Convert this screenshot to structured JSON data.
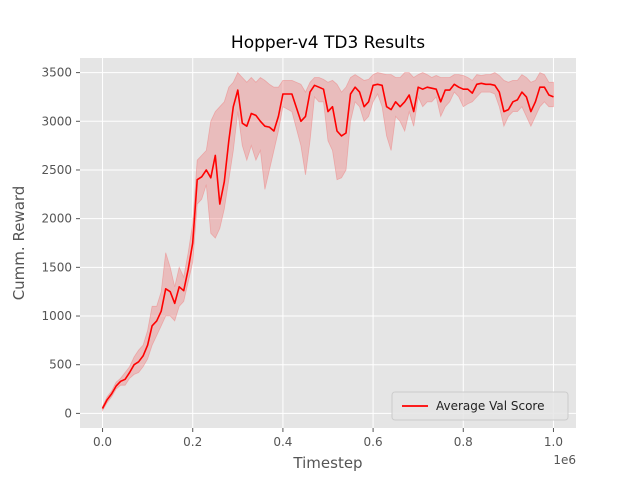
{
  "chart_data": {
    "type": "line",
    "title": "Hopper-v4 TD3 Results",
    "xlabel": "Timestep",
    "ylabel": "Cumm. Reward",
    "x_offset_label": "1e6",
    "xlim": [
      -50000,
      1050000
    ],
    "ylim": [
      -150,
      3650
    ],
    "x_ticks": [
      0,
      200000,
      400000,
      600000,
      800000,
      1000000
    ],
    "x_tick_labels": [
      "0.0",
      "0.2",
      "0.4",
      "0.6",
      "0.8",
      "1.0"
    ],
    "y_ticks": [
      0,
      500,
      1000,
      1500,
      2000,
      2500,
      3000,
      3500
    ],
    "y_tick_labels": [
      "0",
      "500",
      "1000",
      "1500",
      "2000",
      "2500",
      "3000",
      "3500"
    ],
    "grid": true,
    "legend_position": "bottom-right",
    "line_color": "#ff0000",
    "band_color": "#f08080",
    "series": [
      {
        "name": "Average Val Score",
        "x": [
          0,
          10000,
          20000,
          30000,
          40000,
          50000,
          60000,
          70000,
          80000,
          90000,
          100000,
          110000,
          120000,
          130000,
          140000,
          150000,
          160000,
          170000,
          180000,
          190000,
          200000,
          210000,
          220000,
          230000,
          240000,
          250000,
          260000,
          270000,
          280000,
          290000,
          300000,
          310000,
          320000,
          330000,
          340000,
          350000,
          360000,
          370000,
          380000,
          390000,
          400000,
          420000,
          440000,
          450000,
          460000,
          470000,
          480000,
          490000,
          500000,
          510000,
          520000,
          530000,
          540000,
          550000,
          560000,
          570000,
          580000,
          590000,
          600000,
          610000,
          620000,
          630000,
          640000,
          650000,
          660000,
          670000,
          680000,
          690000,
          700000,
          710000,
          720000,
          730000,
          740000,
          750000,
          760000,
          770000,
          780000,
          790000,
          800000,
          810000,
          820000,
          830000,
          840000,
          850000,
          860000,
          870000,
          880000,
          890000,
          900000,
          910000,
          920000,
          930000,
          940000,
          950000,
          960000,
          970000,
          980000,
          990000,
          1000000
        ],
        "values": [
          50,
          140,
          200,
          280,
          330,
          350,
          420,
          500,
          530,
          590,
          700,
          900,
          950,
          1050,
          1280,
          1250,
          1130,
          1300,
          1260,
          1480,
          1750,
          2400,
          2430,
          2500,
          2420,
          2650,
          2150,
          2380,
          2800,
          3150,
          3320,
          2980,
          2950,
          3080,
          3060,
          3000,
          2950,
          2940,
          2900,
          3050,
          3280,
          3280,
          3000,
          3050,
          3300,
          3370,
          3350,
          3330,
          3100,
          3150,
          2900,
          2850,
          2880,
          3280,
          3350,
          3300,
          3150,
          3200,
          3370,
          3380,
          3370,
          3150,
          3120,
          3200,
          3150,
          3200,
          3270,
          3100,
          3350,
          3330,
          3350,
          3340,
          3330,
          3200,
          3320,
          3320,
          3380,
          3350,
          3330,
          3330,
          3290,
          3380,
          3390,
          3380,
          3380,
          3370,
          3300,
          3100,
          3120,
          3200,
          3220,
          3300,
          3250,
          3100,
          3200,
          3350,
          3350,
          3270,
          3250
        ],
        "lower": [
          30,
          110,
          170,
          250,
          290,
          290,
          360,
          400,
          420,
          480,
          560,
          700,
          800,
          900,
          1000,
          1000,
          950,
          1100,
          1150,
          1350,
          1550,
          2150,
          2200,
          2350,
          1850,
          1800,
          1900,
          2100,
          2400,
          2700,
          3100,
          2750,
          2600,
          2750,
          2600,
          2700,
          2300,
          2500,
          2700,
          2900,
          3150,
          3100,
          2750,
          2450,
          2800,
          3250,
          3200,
          3200,
          2800,
          2700,
          2400,
          2420,
          2500,
          3000,
          3200,
          3150,
          3000,
          3050,
          3200,
          3280,
          3150,
          2850,
          2700,
          3050,
          3000,
          2900,
          3100,
          2950,
          3250,
          3150,
          3200,
          3200,
          3250,
          3050,
          3150,
          3200,
          3300,
          3250,
          3150,
          3180,
          3200,
          3250,
          3300,
          3300,
          3300,
          3280,
          3150,
          2950,
          3050,
          3100,
          3100,
          3150,
          3050,
          2950,
          3050,
          3150,
          3200,
          3150,
          3150
        ],
        "upper": [
          70,
          170,
          230,
          320,
          360,
          420,
          480,
          580,
          650,
          700,
          850,
          1100,
          1100,
          1250,
          1650,
          1500,
          1300,
          1500,
          1400,
          1650,
          1950,
          2600,
          2650,
          2700,
          3000,
          3100,
          3150,
          3200,
          3350,
          3400,
          3500,
          3450,
          3400,
          3450,
          3400,
          3450,
          3420,
          3380,
          3350,
          3350,
          3420,
          3420,
          3380,
          3300,
          3400,
          3450,
          3450,
          3430,
          3400,
          3420,
          3380,
          3300,
          3350,
          3450,
          3480,
          3450,
          3420,
          3430,
          3480,
          3500,
          3490,
          3480,
          3480,
          3450,
          3450,
          3500,
          3500,
          3450,
          3480,
          3500,
          3480,
          3450,
          3470,
          3450,
          3450,
          3450,
          3480,
          3480,
          3470,
          3450,
          3420,
          3480,
          3470,
          3480,
          3480,
          3500,
          3470,
          3420,
          3400,
          3420,
          3420,
          3480,
          3450,
          3400,
          3420,
          3500,
          3480,
          3400,
          3400
        ]
      }
    ]
  }
}
